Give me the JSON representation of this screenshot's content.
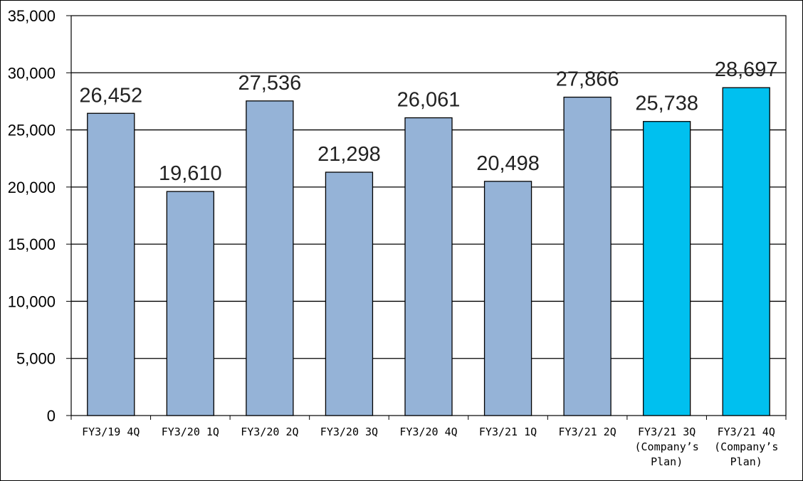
{
  "chart_data": {
    "type": "bar",
    "title": "",
    "xlabel": "",
    "ylabel": "",
    "categories": [
      [
        "FY3/19 4Q"
      ],
      [
        "FY3/20 1Q"
      ],
      [
        "FY3/20 2Q"
      ],
      [
        "FY3/20 3Q"
      ],
      [
        "FY3/20 4Q"
      ],
      [
        "FY3/21 1Q"
      ],
      [
        "FY3/21 2Q"
      ],
      [
        "FY3/21 3Q",
        "(Company’s",
        "Plan)"
      ],
      [
        "FY3/21 4Q",
        "(Company’s",
        "Plan)"
      ]
    ],
    "values": [
      26452,
      19610,
      27536,
      21298,
      26061,
      20498,
      27866,
      25738,
      28697
    ],
    "value_labels": [
      "26,452",
      "19,610",
      "27,536",
      "21,298",
      "26,061",
      "20,498",
      "27,866",
      "25,738",
      "28,697"
    ],
    "ylim": [
      0,
      35000
    ],
    "yticks": [
      0,
      5000,
      10000,
      15000,
      20000,
      25000,
      30000,
      35000
    ],
    "ytick_labels": [
      "0",
      "5,000",
      "10,000",
      "15,000",
      "20,000",
      "25,000",
      "30,000",
      "35,000"
    ],
    "grid": true,
    "colors": {
      "actual": "#95b3d7",
      "plan": "#00c0ef",
      "edge": "#000000",
      "grid": "#000000"
    },
    "bar_kind": [
      "actual",
      "actual",
      "actual",
      "actual",
      "actual",
      "actual",
      "actual",
      "plan",
      "plan"
    ]
  }
}
